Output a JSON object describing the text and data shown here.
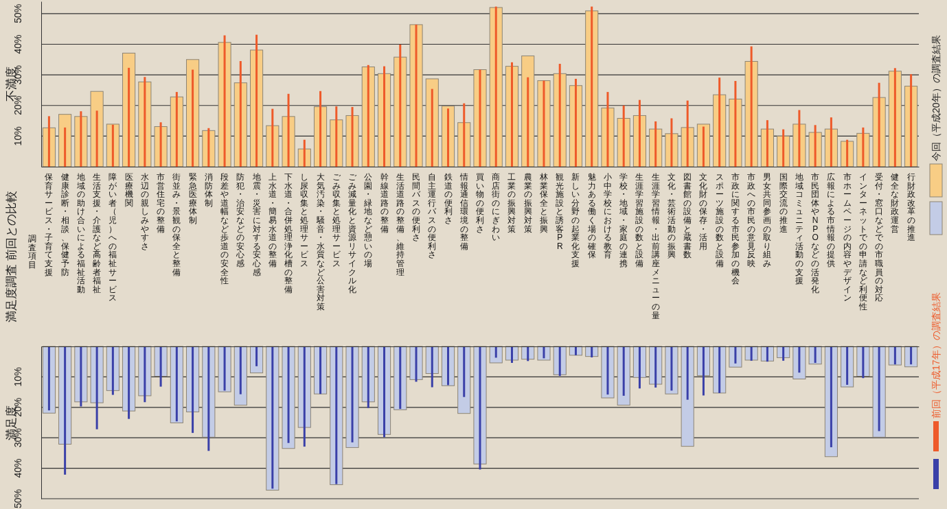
{
  "chart_data": [
    {
      "type": "bar",
      "title": "満足度調査 前回との比較",
      "ylabel": "不満度",
      "annotations": [
        "調査項目"
      ],
      "categories": [
        "保育サービス・子育て支援",
        "健康診断・相談、保健予防",
        "地域の助け合いによる福祉活動",
        "生活支援・介護など高齢者福祉",
        "障がい者（児）への福祉サービス",
        "医療機関",
        "水辺の親しみやすさ",
        "市営住宅の整備",
        "街並み・景観の保全と整備",
        "緊急医療体制",
        "消防体制",
        "段差や道幅など歩道の安全性",
        "防犯・治安などの安心感",
        "地震・災害に対する安心感",
        "上水道・簡易水道の整備",
        "下水道・合併処理浄化槽の整備",
        "し尿収集と処理サービス",
        "大気汚染・騒音・水質など公害対策",
        "ごみ収集と処理サービス",
        "ごみ減量化と資源リサイクル化",
        "公園・緑地など憩いの場",
        "幹線道路の整備",
        "生活道路の整備、維持管理",
        "民間バスの便利さ",
        "自主運行バスの便利さ",
        "鉄道の便利さ",
        "情報通信環境の整備",
        "買い物の便利さ",
        "商店街のにぎわい",
        "工業の振興対策",
        "農業の振興対策",
        "林業保全と振興",
        "観光施設と誘客PR",
        "新しい分野の起業化支援",
        "魅力ある働く場の確保",
        "小中学校における教育",
        "学校・地域・家庭の連携",
        "生涯学習施設の数と設備",
        "生涯学習情報・出前講座メニューの量",
        "文化・芸術活動の振興",
        "図書館の設備と蔵書数",
        "文化財の保存・活用",
        "スポーツ施設の数と設備",
        "市政に関する市民参加の機会",
        "市政への市民の意見反映",
        "男女共同参画の取り組み",
        "国際交流の推進",
        "地域コミュニティ活動の支援",
        "市民団体やNPOなどの活発化",
        "広報による市情報の提供",
        "市ホームページの内容やデザイン",
        "インターネットでの申請など利便性",
        "受付・窓口などでの市職員の対応",
        "健全な財政運営",
        "行財政改革の推進"
      ],
      "ylim": [
        0,
        54
      ],
      "yticks": [
        {
          "value": 10,
          "label": "10%"
        },
        {
          "value": 20,
          "label": "20%"
        },
        {
          "value": 30,
          "label": "30%"
        },
        {
          "value": 40,
          "label": "40%"
        },
        {
          "value": 50,
          "label": "50%"
        }
      ],
      "grid": "y",
      "legend": "right",
      "series": [
        {
          "name": "今回（平成20年）の調査結果",
          "color": "#f8cd85",
          "values": [
            12.7,
            17.1,
            16.4,
            24.6,
            13.9,
            37.1,
            27.7,
            13.1,
            22.8,
            35.0,
            11.8,
            40.6,
            27.4,
            38.1,
            13.4,
            16.4,
            5.8,
            19.6,
            15.3,
            16.7,
            32.6,
            30.4,
            35.8,
            46.4,
            28.7,
            19.8,
            14.4,
            31.7,
            52.0,
            32.8,
            36.2,
            28.1,
            30.4,
            26.5,
            50.9,
            19.2,
            15.8,
            16.7,
            12.3,
            10.8,
            12.8,
            13.9,
            23.5,
            22.1,
            34.4,
            12.3,
            10.0,
            13.9,
            11.2,
            12.3,
            8.3,
            10.9,
            22.6,
            31.2,
            26.3
          ]
        },
        {
          "name": "前回（平成17年）の調査結果",
          "color": "#ee5a2a",
          "values": [
            16.5,
            12.8,
            18.1,
            18.3,
            13.7,
            32.3,
            29.3,
            14.5,
            24.4,
            31.7,
            12.6,
            42.9,
            34.5,
            43.1,
            18.9,
            23.8,
            8.8,
            24.7,
            19.7,
            19.5,
            33.2,
            32.8,
            39.9,
            46.4,
            25.4,
            19.0,
            20.7,
            31.7,
            52.3,
            34.1,
            29.2,
            28.1,
            33.6,
            28.7,
            52.3,
            24.4,
            20.0,
            21.8,
            14.8,
            15.8,
            21.6,
            13.1,
            29.1,
            28.0,
            39.3,
            15.2,
            12.2,
            18.5,
            13.6,
            16.1,
            8.8,
            12.8,
            27.4,
            32.2,
            30.2
          ]
        }
      ]
    },
    {
      "type": "bar",
      "ylabel": "満足度",
      "tick_labels": "y",
      "categories": [
        "保育サービス・子育て支援",
        "健康診断・相談、保健予防",
        "地域の助け合いによる福祉活動",
        "生活支援・介護など高齢者福祉",
        "障がい者（児）への福祉サービス",
        "医療機関",
        "水辺の親しみやすさ",
        "市営住宅の整備",
        "街並み・景観の保全と整備",
        "緊急医療体制",
        "消防体制",
        "段差や道幅など歩道の安全性",
        "防犯・治安などの安心感",
        "地震・災害に対する安心感",
        "上水道・簡易水道の整備",
        "下水道・合併処理浄化槽の整備",
        "し尿収集と処理サービス",
        "大気汚染・騒音・水質など公害対策",
        "ごみ収集と処理サービス",
        "ごみ減量化と資源リサイクル化",
        "公園・緑地など憩いの場",
        "幹線道路の整備",
        "生活道路の整備、維持管理",
        "民間バスの便利さ",
        "自主運行バスの便利さ",
        "鉄道の便利さ",
        "情報通信環境の整備",
        "買い物の便利さ",
        "商店街のにぎわい",
        "工業の振興対策",
        "農業の振興対策",
        "林業保全と振興",
        "観光施設と誘客PR",
        "新しい分野の起業化支援",
        "魅力ある働く場の確保",
        "小中学校における教育",
        "学校・地域・家庭の連携",
        "生涯学習施設の数と設備",
        "生涯学習情報・出前講座メニューの量",
        "文化・芸術活動の振興",
        "図書館の設備と蔵書数",
        "文化財の保存・活用",
        "スポーツ施設の数と設備",
        "市政に関する市民参加の機会",
        "市政への市民の意見反映",
        "男女共同参画の取り組み",
        "国際交流の推進",
        "地域コミュニティ活動の支援",
        "市民団体やNPOなどの活発化",
        "広報による市情報の提供",
        "市ホームページの内容やデザイン",
        "インターネットでの申請など利便性",
        "受付・窓口などでの市職員の対応",
        "健全な財政運営",
        "行財政改革の推進"
      ],
      "ylim": [
        50,
        0
      ],
      "yticks": [
        {
          "value": 10,
          "label": "10%"
        },
        {
          "value": 20,
          "label": "20%"
        },
        {
          "value": 30,
          "label": "30%"
        },
        {
          "value": 40,
          "label": "40%"
        },
        {
          "value": 50,
          "label": "50%"
        }
      ],
      "grid": "y",
      "series": [
        {
          "color": "#c3cce6",
          "values": [
            21.9,
            32.1,
            18.2,
            18.5,
            14.5,
            21.2,
            16.2,
            9.8,
            25.1,
            21.5,
            29.8,
            14.9,
            19.3,
            8.7,
            47.2,
            33.5,
            26.6,
            15.6,
            45.4,
            33.2,
            18.2,
            28.9,
            20.8,
            10.9,
            8.9,
            12.9,
            22.0,
            38.6,
            5.4,
            4.5,
            4.2,
            4.5,
            9.3,
            2.9,
            3.3,
            16.9,
            19.3,
            10.2,
            12.4,
            15.6,
            32.8,
            9.6,
            15.3,
            6.8,
            4.5,
            4.8,
            3.7,
            10.7,
            5.8,
            36.2,
            13.3,
            9.8,
            29.8,
            6.1,
            6.7
          ]
        },
        {
          "color": "#3a40a8",
          "values": [
            21.0,
            42.1,
            19.7,
            27.2,
            15.9,
            23.8,
            18.3,
            13.2,
            24.6,
            28.4,
            34.3,
            14.5,
            15.7,
            6.5,
            46.7,
            31.7,
            32.9,
            15.6,
            45.2,
            31.5,
            20.2,
            29.8,
            20.5,
            11.6,
            13.4,
            12.7,
            16.6,
            40.4,
            3.7,
            5.4,
            4.8,
            3.9,
            9.7,
            2.9,
            3.6,
            15.8,
            16.2,
            13.8,
            13.5,
            14.5,
            17.5,
            16.1,
            15.3,
            5.6,
            4.7,
            5.0,
            4.7,
            8.6,
            5.4,
            33.1,
            12.6,
            10.4,
            27.8,
            5.9,
            5.9
          ]
        }
      ]
    }
  ]
}
